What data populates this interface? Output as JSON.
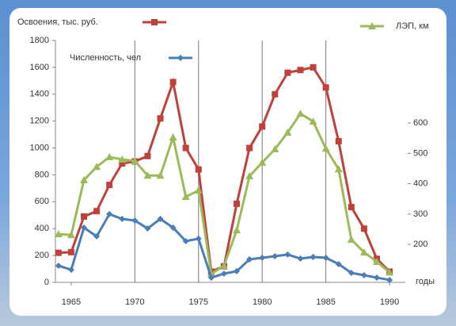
{
  "chart_data": {
    "type": "line",
    "x": [
      1964,
      1965,
      1966,
      1967,
      1968,
      1969,
      1970,
      1971,
      1972,
      1973,
      1974,
      1975,
      1976,
      1977,
      1978,
      1979,
      1980,
      1981,
      1982,
      1983,
      1984,
      1985,
      1986,
      1987,
      1988,
      1989,
      1990
    ],
    "xlim": [
      1963.76,
      1991.24
    ],
    "xticks": [
      1965,
      1970,
      1975,
      1980,
      1985,
      1990
    ],
    "x_label": "годы",
    "ylim": [
      0,
      1800
    ],
    "yticks": [
      0,
      200,
      400,
      600,
      800,
      1000,
      1200,
      1400,
      1600,
      1800
    ],
    "y2lim": [
      75,
      872
    ],
    "y2ticks": [
      200,
      300,
      400,
      500,
      600
    ],
    "series": [
      {
        "name": "Освоения, тыс. руб.",
        "color": "#c0403c",
        "marker": "square",
        "values": [
          220,
          225,
          490,
          530,
          725,
          885,
          900,
          940,
          1220,
          1490,
          1000,
          840,
          80,
          120,
          585,
          1000,
          1160,
          1400,
          1560,
          1580,
          1600,
          1450,
          1050,
          560,
          400,
          175,
          80
        ]
      },
      {
        "name": "ЛЭП, км",
        "color": "#9bbb59",
        "marker": "triangle",
        "axis": "y2",
        "values": [
          234,
          231,
          412,
          456,
          488,
          480,
          475,
          427,
          427,
          553,
          357,
          378,
          103,
          130,
          247,
          425,
          470,
          514,
          569,
          631,
          605,
          516,
          448,
          216,
          174,
          143,
          108
        ]
      },
      {
        "name": "Численность, чел",
        "color": "#4a7ebb",
        "marker": "diamond",
        "values": [
          124,
          94,
          407,
          342,
          508,
          472,
          460,
          401,
          472,
          407,
          307,
          325,
          35,
          65,
          83,
          171,
          183,
          195,
          207,
          177,
          189,
          183,
          136,
          71,
          53,
          35,
          18
        ]
      }
    ]
  }
}
